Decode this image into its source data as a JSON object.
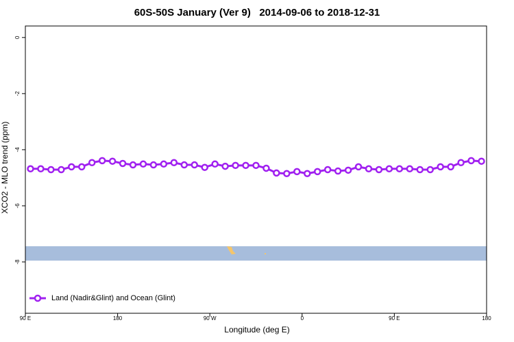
{
  "chart_data": {
    "type": "line",
    "title": "60S-50S January (Ver 9)   2014-09-06 to 2018-12-31",
    "x_label": "Longitude (deg E)",
    "y_label": "XCO2 - MLO trend (ppm)",
    "x": [
      95,
      105,
      115,
      125,
      135,
      145,
      155,
      165,
      175,
      185,
      195,
      205,
      215,
      225,
      235,
      245,
      255,
      265,
      275,
      285,
      295,
      305,
      315,
      325,
      335,
      345,
      355,
      365,
      375,
      385,
      395,
      405,
      415,
      425,
      435,
      445,
      455,
      465,
      475,
      485,
      495,
      505,
      515,
      525,
      535
    ],
    "series": [
      {
        "name": "Land (Nadir&Glint) and Ocean (Glint)",
        "color": "#a020f0",
        "values": [
          -4.68,
          -4.68,
          -4.71,
          -4.71,
          -4.61,
          -4.61,
          -4.46,
          -4.39,
          -4.41,
          -4.49,
          -4.54,
          -4.51,
          -4.54,
          -4.51,
          -4.46,
          -4.54,
          -4.54,
          -4.63,
          -4.51,
          -4.59,
          -4.56,
          -4.56,
          -4.56,
          -4.66,
          -4.83,
          -4.85,
          -4.78,
          -4.85,
          -4.78,
          -4.71,
          -4.76,
          -4.73,
          -4.61,
          -4.68,
          -4.71,
          -4.68,
          -4.68,
          -4.68,
          -4.71,
          -4.71,
          -4.61,
          -4.61,
          -4.46,
          -4.39,
          -4.41
        ]
      }
    ],
    "xlim": [
      90,
      540
    ],
    "xticks": [
      {
        "value": 90,
        "label": "90 E"
      },
      180,
      {
        "value": 270,
        "label": "90 W"
      },
      {
        "value": 360,
        "label": "0"
      },
      {
        "value": 450,
        "label": "90 E"
      },
      {
        "value": 540,
        "label": "180"
      }
    ],
    "ylim": [
      -9.83,
      0.41
    ],
    "yticks": [
      0,
      -2,
      -4,
      -6,
      -8
    ],
    "legend": "bottomleft"
  }
}
